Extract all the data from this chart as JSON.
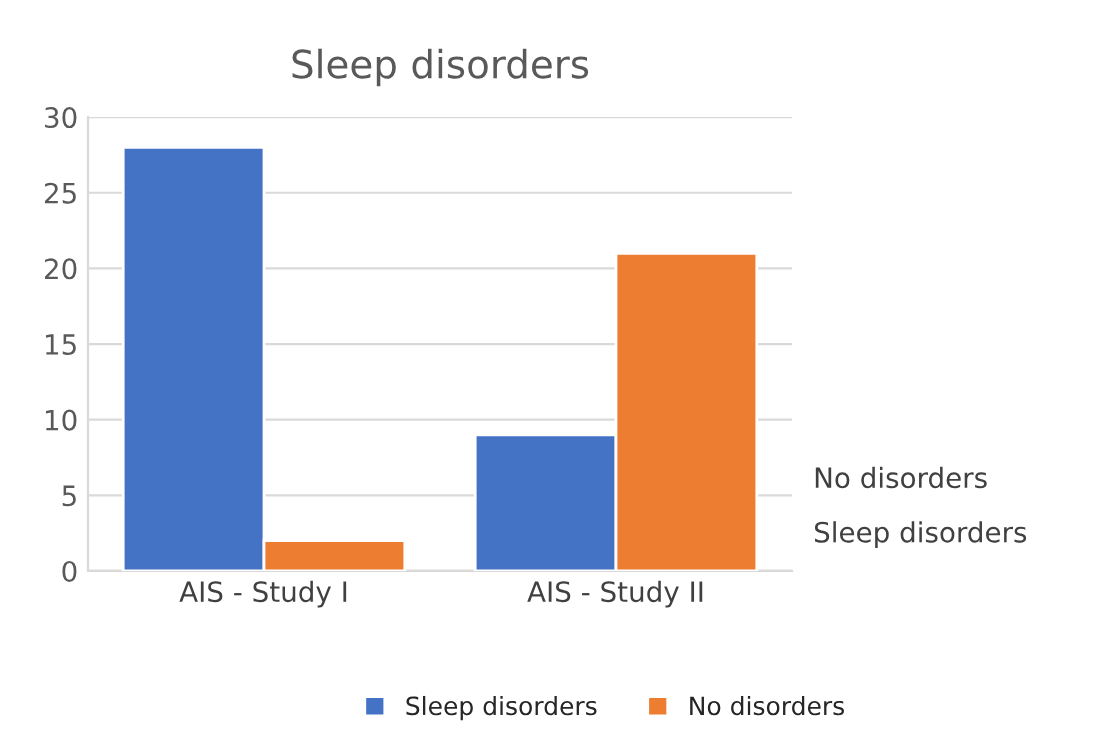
{
  "chart_data": {
    "type": "bar",
    "title": "Sleep disorders",
    "categories": [
      "AIS - Study I",
      "AIS - Study II"
    ],
    "series": [
      {
        "name": "Sleep disorders",
        "color": "#4472c4",
        "values": [
          28,
          9
        ]
      },
      {
        "name": "No disorders",
        "color": "#ed7d31",
        "values": [
          2,
          21
        ]
      }
    ],
    "ylim": [
      0,
      30
    ],
    "yticks": [
      0,
      5,
      10,
      15,
      20,
      25,
      30
    ],
    "grid": "y",
    "legend": "bottom"
  }
}
